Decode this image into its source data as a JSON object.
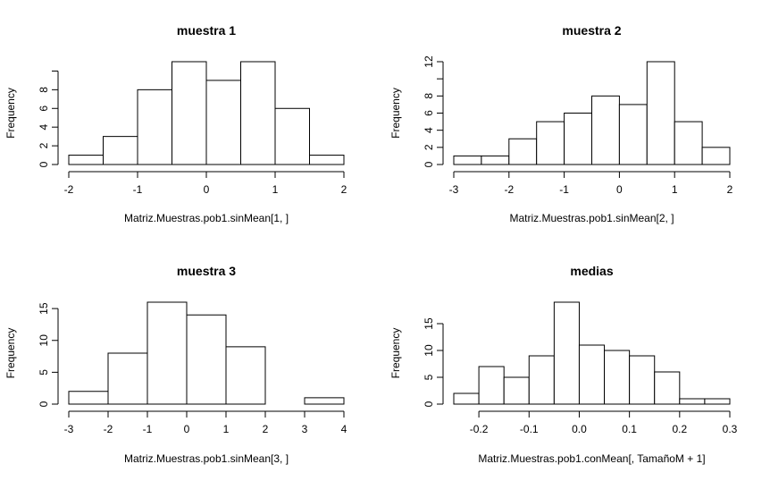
{
  "chart_data": [
    {
      "type": "bar",
      "title": "muestra 1",
      "xlabel": "Matriz.Muestras.pob1.sinMean[1, ]",
      "ylabel": "Frequency",
      "breaks": [
        -2,
        -1.5,
        -1,
        -0.5,
        0,
        0.5,
        1,
        1.5,
        2
      ],
      "values": [
        1,
        3,
        8,
        11,
        9,
        11,
        6,
        1
      ],
      "xlim": [
        -2,
        2
      ],
      "ylim": [
        0,
        11
      ],
      "x_ticks": [
        -2,
        -1,
        0,
        1,
        2
      ],
      "x_tick_labels": [
        "-2",
        "-1",
        "0",
        "1",
        "2"
      ],
      "y_ticks": [
        0,
        2,
        4,
        6,
        8,
        10
      ],
      "y_tick_labels": [
        "0",
        "2",
        "4",
        "6",
        "8",
        ""
      ]
    },
    {
      "type": "bar",
      "title": "muestra 2",
      "xlabel": "Matriz.Muestras.pob1.sinMean[2, ]",
      "ylabel": "Frequency",
      "breaks": [
        -3,
        -2.5,
        -2,
        -1.5,
        -1,
        -0.5,
        0,
        0.5,
        1,
        1.5,
        2
      ],
      "values": [
        1,
        1,
        3,
        5,
        6,
        8,
        7,
        12,
        5,
        2
      ],
      "xlim": [
        -3,
        2
      ],
      "ylim": [
        0,
        12
      ],
      "x_ticks": [
        -3,
        -2,
        -1,
        0,
        1,
        2
      ],
      "x_tick_labels": [
        "-3",
        "-2",
        "-1",
        "0",
        "1",
        "2"
      ],
      "y_ticks": [
        0,
        2,
        4,
        6,
        8,
        10,
        12
      ],
      "y_tick_labels": [
        "0",
        "2",
        "4",
        "6",
        "8",
        "",
        "12"
      ]
    },
    {
      "type": "bar",
      "title": "muestra 3",
      "xlabel": "Matriz.Muestras.pob1.sinMean[3, ]",
      "ylabel": "Frequency",
      "breaks": [
        -3,
        -2,
        -1,
        0,
        1,
        2,
        3,
        4
      ],
      "values": [
        2,
        8,
        16,
        14,
        9,
        0,
        1
      ],
      "xlim": [
        -3,
        4
      ],
      "ylim": [
        0,
        16
      ],
      "x_ticks": [
        -3,
        -2,
        -1,
        0,
        1,
        2,
        3,
        4
      ],
      "x_tick_labels": [
        "-3",
        "-2",
        "-1",
        "0",
        "1",
        "2",
        "3",
        "4"
      ],
      "y_ticks": [
        0,
        5,
        10,
        15
      ],
      "y_tick_labels": [
        "0",
        "5",
        "10",
        "15"
      ]
    },
    {
      "type": "bar",
      "title": "medias",
      "xlabel": "Matriz.Muestras.pob1.conMean[, TamañoM + 1]",
      "ylabel": "Frequency",
      "breaks": [
        -0.25,
        -0.2,
        -0.15,
        -0.1,
        -0.05,
        0,
        0.05,
        0.1,
        0.15,
        0.2,
        0.25,
        0.3
      ],
      "values": [
        2,
        7,
        5,
        9,
        19,
        11,
        10,
        9,
        6,
        1,
        1
      ],
      "xlim": [
        -0.25,
        0.3
      ],
      "ylim": [
        0,
        19
      ],
      "x_ticks": [
        -0.2,
        -0.1,
        0,
        0.1,
        0.2,
        0.3
      ],
      "x_tick_labels": [
        "-0.2",
        "-0.1",
        "0.0",
        "0.1",
        "0.2",
        "0.3"
      ],
      "y_ticks": [
        0,
        5,
        10,
        15
      ],
      "y_tick_labels": [
        "0",
        "5",
        "10",
        "15"
      ]
    }
  ]
}
